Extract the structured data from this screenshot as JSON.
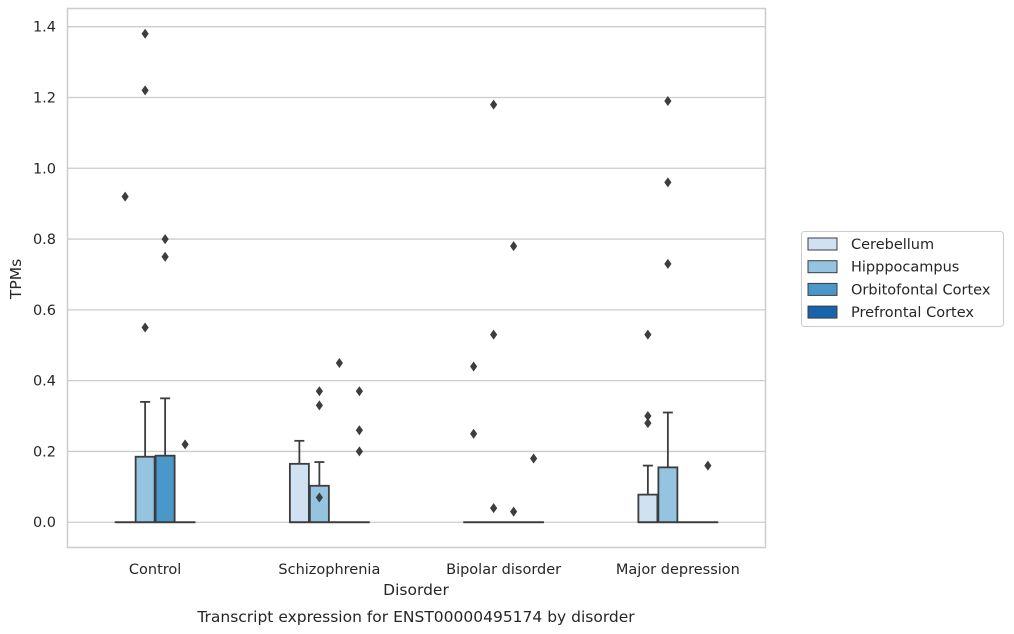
{
  "chart_data": {
    "type": "box",
    "title": "",
    "caption": "Transcript expression for ENST00000495174 by disorder",
    "xlabel": "Disorder",
    "ylabel": "TPMs",
    "ylim": [
      -0.07,
      1.45
    ],
    "yticks": [
      0.0,
      0.2,
      0.4,
      0.6,
      0.8,
      1.0,
      1.2,
      1.4
    ],
    "ytick_labels": [
      "0.0",
      "0.2",
      "0.4",
      "0.6",
      "0.8",
      "1.0",
      "1.2",
      "1.4"
    ],
    "grid": true,
    "legend_position": "right",
    "categories": [
      "Control",
      "Schizophrenia",
      "Bipolar disorder",
      "Major depression"
    ],
    "series": [
      {
        "name": "Cerebellum",
        "color": "#d0e1f2",
        "boxes": [
          {
            "q1": 0,
            "median": 0,
            "q3": 0,
            "whisker_low": 0,
            "whisker_high": 0,
            "outliers": [
              0.92
            ]
          },
          {
            "q1": 0,
            "median": 0,
            "q3": 0.165,
            "whisker_low": 0,
            "whisker_high": 0.23,
            "outliers": []
          },
          {
            "q1": 0,
            "median": 0,
            "q3": 0,
            "whisker_low": 0,
            "whisker_high": 0,
            "outliers": [
              0.44,
              0.25
            ]
          },
          {
            "q1": 0,
            "median": 0,
            "q3": 0.078,
            "whisker_low": 0,
            "whisker_high": 0.16,
            "outliers": [
              0.53,
              0.3,
              0.28
            ]
          }
        ]
      },
      {
        "name": "Hipppocampus",
        "color": "#94c4df",
        "boxes": [
          {
            "q1": 0,
            "median": 0,
            "q3": 0.185,
            "whisker_low": 0,
            "whisker_high": 0.34,
            "outliers": [
              1.38,
              1.22,
              0.55
            ]
          },
          {
            "q1": 0,
            "median": 0,
            "q3": 0.103,
            "whisker_low": 0,
            "whisker_high": 0.17,
            "outliers": [
              0.37,
              0.33,
              0.07
            ]
          },
          {
            "q1": 0,
            "median": 0,
            "q3": 0,
            "whisker_low": 0,
            "whisker_high": 0,
            "outliers": [
              1.18,
              0.53,
              0.04
            ]
          },
          {
            "q1": 0,
            "median": 0,
            "q3": 0.155,
            "whisker_low": 0,
            "whisker_high": 0.31,
            "outliers": [
              1.19,
              0.96,
              0.73
            ]
          }
        ]
      },
      {
        "name": "Orbitofontal Cortex",
        "color": "#4a98c9",
        "boxes": [
          {
            "q1": 0,
            "median": 0,
            "q3": 0.188,
            "whisker_low": 0,
            "whisker_high": 0.35,
            "outliers": [
              0.8,
              0.75
            ]
          },
          {
            "q1": 0,
            "median": 0,
            "q3": 0,
            "whisker_low": 0,
            "whisker_high": 0,
            "outliers": [
              0.45
            ]
          },
          {
            "q1": 0,
            "median": 0,
            "q3": 0,
            "whisker_low": 0,
            "whisker_high": 0,
            "outliers": [
              0.78,
              0.03
            ]
          },
          {
            "q1": 0,
            "median": 0,
            "q3": 0,
            "whisker_low": 0,
            "whisker_high": 0,
            "outliers": []
          }
        ]
      },
      {
        "name": "Prefrontal Cortex",
        "color": "#1764ab",
        "boxes": [
          {
            "q1": 0,
            "median": 0,
            "q3": 0,
            "whisker_low": 0,
            "whisker_high": 0,
            "outliers": [
              0.22
            ]
          },
          {
            "q1": 0,
            "median": 0,
            "q3": 0,
            "whisker_low": 0,
            "whisker_high": 0,
            "outliers": [
              0.37,
              0.26,
              0.2
            ]
          },
          {
            "q1": 0,
            "median": 0,
            "q3": 0,
            "whisker_low": 0,
            "whisker_high": 0,
            "outliers": [
              0.18
            ]
          },
          {
            "q1": 0,
            "median": 0,
            "q3": 0,
            "whisker_low": 0,
            "whisker_high": 0,
            "outliers": [
              0.16
            ]
          }
        ]
      }
    ]
  }
}
